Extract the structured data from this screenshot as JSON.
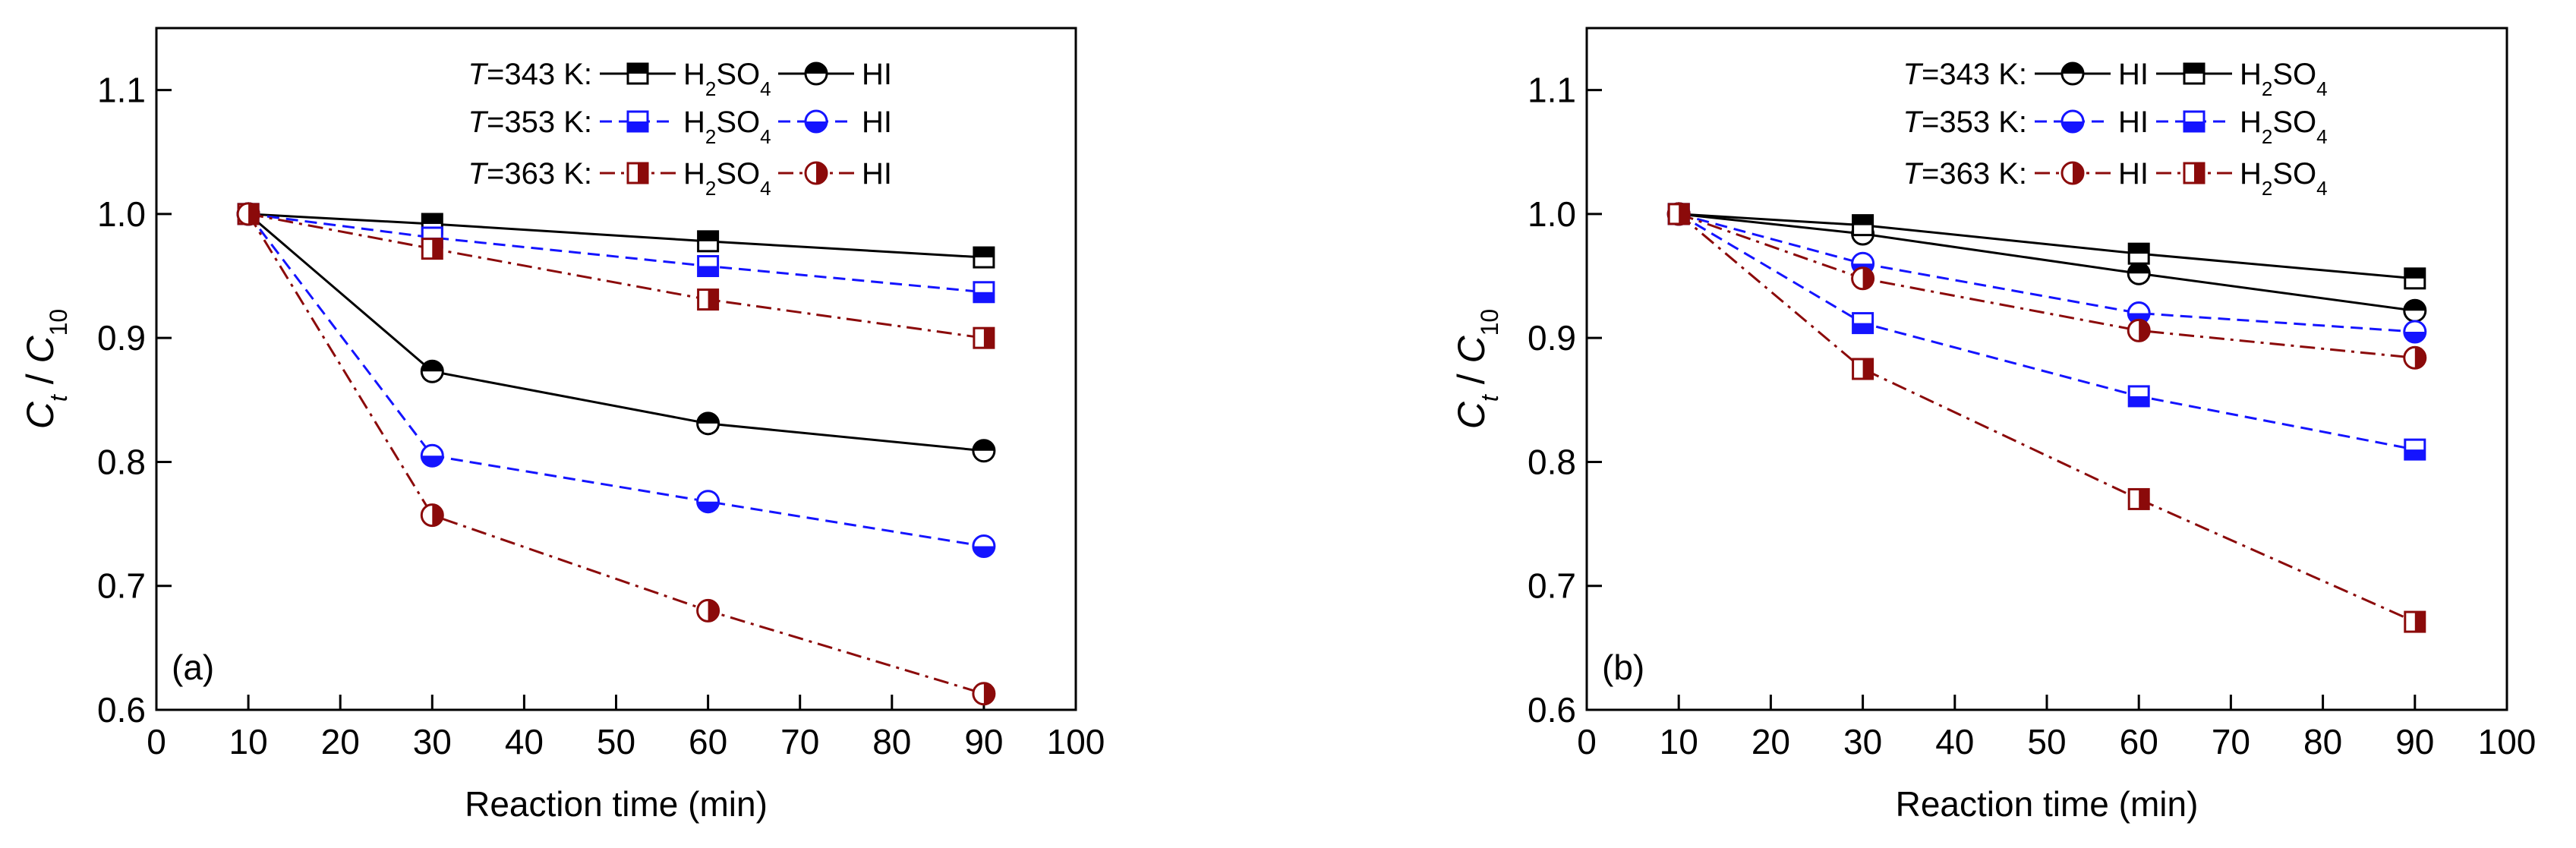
{
  "chart_data": [
    {
      "type": "line",
      "panel_label": "(a)",
      "xlabel": "Reaction time (min)",
      "ylabel": "Ct / C10",
      "xlim": [
        0,
        100
      ],
      "ylim": [
        0.6,
        1.15
      ],
      "xticks": [
        0,
        10,
        20,
        30,
        40,
        50,
        60,
        70,
        80,
        90,
        100
      ],
      "yticks": [
        0.6,
        0.7,
        0.8,
        0.9,
        1.0,
        1.1
      ],
      "ytick_labels": [
        "0.6",
        "0.7",
        "0.8",
        "0.9",
        "1.0",
        "1.1"
      ],
      "x": [
        10,
        30,
        60,
        90
      ],
      "legend_rows": [
        {
          "label": "T=343 K:",
          "series": [
            0,
            1
          ]
        },
        {
          "label": "T=353 K:",
          "series": [
            2,
            3
          ]
        },
        {
          "label": "T=363 K:",
          "series": [
            4,
            5
          ]
        }
      ],
      "legend_placement": "top-right",
      "series": [
        {
          "name": "H2SO4",
          "temp": "343",
          "color": "#000000",
          "dash": "solid",
          "marker": "square-top",
          "values": [
            1.0,
            0.992,
            0.978,
            0.965
          ]
        },
        {
          "name": "HI",
          "temp": "343",
          "color": "#000000",
          "dash": "solid",
          "marker": "circle-top",
          "values": [
            1.0,
            0.873,
            0.831,
            0.809
          ]
        },
        {
          "name": "H2SO4",
          "temp": "353",
          "color": "#1414ff",
          "dash": "dash",
          "marker": "square-bottom",
          "values": [
            1.0,
            0.981,
            0.958,
            0.937
          ]
        },
        {
          "name": "HI",
          "temp": "353",
          "color": "#1414ff",
          "dash": "dash",
          "marker": "circle-bottom",
          "values": [
            1.0,
            0.805,
            0.768,
            0.732
          ]
        },
        {
          "name": "H2SO4",
          "temp": "363",
          "color": "#8b0a0a",
          "dash": "dashdot",
          "marker": "square-right",
          "values": [
            1.0,
            0.972,
            0.931,
            0.9
          ]
        },
        {
          "name": "HI",
          "temp": "363",
          "color": "#8b0a0a",
          "dash": "dashdot",
          "marker": "circle-right",
          "values": [
            1.0,
            0.757,
            0.68,
            0.613
          ]
        }
      ]
    },
    {
      "type": "line",
      "panel_label": "(b)",
      "xlabel": "Reaction time (min)",
      "ylabel": "Ct / C10",
      "xlim": [
        0,
        100
      ],
      "ylim": [
        0.6,
        1.15
      ],
      "xticks": [
        0,
        10,
        20,
        30,
        40,
        50,
        60,
        70,
        80,
        90,
        100
      ],
      "yticks": [
        0.6,
        0.7,
        0.8,
        0.9,
        1.0,
        1.1
      ],
      "ytick_labels": [
        "0.6",
        "0.7",
        "0.8",
        "0.9",
        "1.0",
        "1.1"
      ],
      "x": [
        10,
        30,
        60,
        90
      ],
      "legend_rows": [
        {
          "label": "T=343 K:",
          "series": [
            0,
            1
          ]
        },
        {
          "label": "T=353 K:",
          "series": [
            2,
            3
          ]
        },
        {
          "label": "T=363 K:",
          "series": [
            4,
            5
          ]
        }
      ],
      "legend_placement": "top-right",
      "series": [
        {
          "name": "HI",
          "temp": "343",
          "color": "#000000",
          "dash": "solid",
          "marker": "circle-top",
          "values": [
            1.0,
            0.984,
            0.952,
            0.922
          ]
        },
        {
          "name": "H2SO4",
          "temp": "343",
          "color": "#000000",
          "dash": "solid",
          "marker": "square-top",
          "values": [
            1.0,
            0.991,
            0.968,
            0.948
          ]
        },
        {
          "name": "HI",
          "temp": "353",
          "color": "#1414ff",
          "dash": "dash",
          "marker": "circle-bottom",
          "values": [
            1.0,
            0.96,
            0.92,
            0.905
          ]
        },
        {
          "name": "H2SO4",
          "temp": "353",
          "color": "#1414ff",
          "dash": "dash",
          "marker": "square-bottom",
          "values": [
            1.0,
            0.912,
            0.853,
            0.81
          ]
        },
        {
          "name": "HI",
          "temp": "363",
          "color": "#8b0a0a",
          "dash": "dashdot",
          "marker": "circle-right",
          "values": [
            1.0,
            0.948,
            0.906,
            0.884
          ]
        },
        {
          "name": "H2SO4",
          "temp": "363",
          "color": "#8b0a0a",
          "dash": "dashdot",
          "marker": "square-right",
          "values": [
            1.0,
            0.875,
            0.77,
            0.671
          ]
        }
      ]
    }
  ]
}
